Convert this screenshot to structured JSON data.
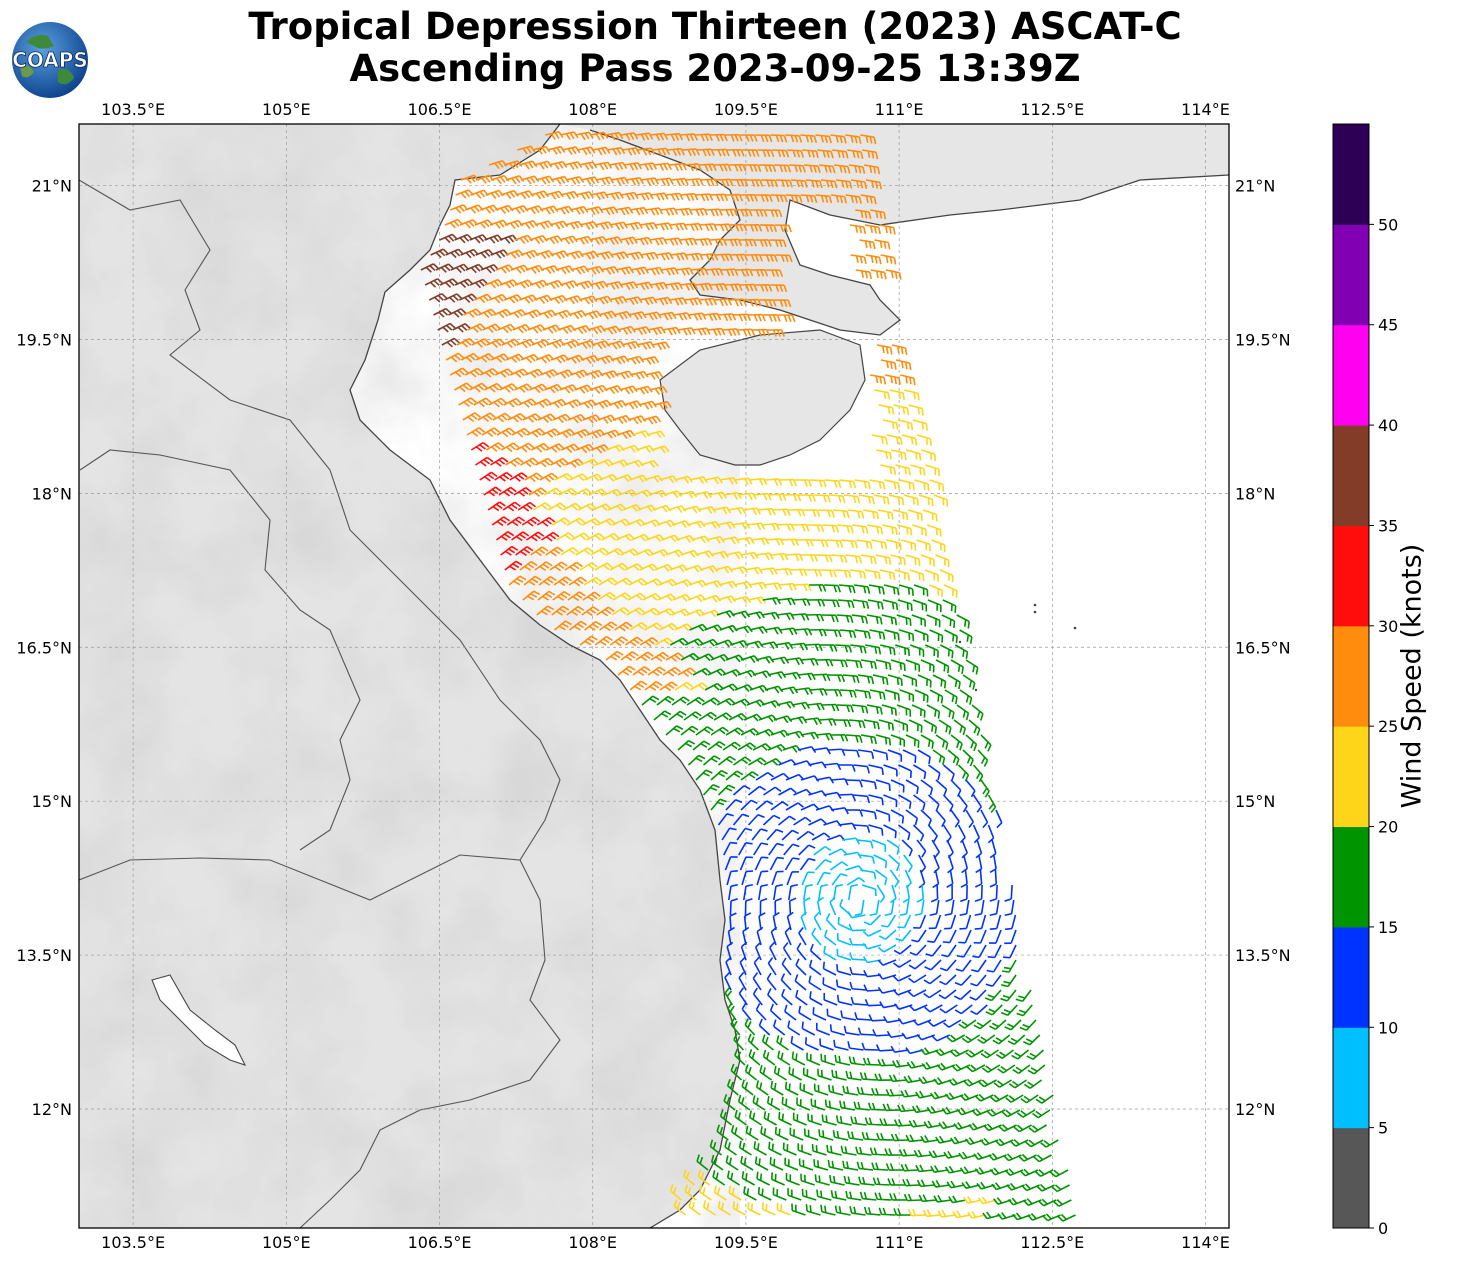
{
  "title": {
    "line1": "Tropical Depression Thirteen (2023) ASCAT-C",
    "line2": "Ascending Pass 2023-09-25 13:39Z"
  },
  "logo": {
    "text": "COAPS",
    "icon": "globe-logo-icon"
  },
  "map": {
    "lon_range": [
      102.97,
      114.23
    ],
    "lat_range": [
      10.84,
      21.6
    ],
    "lon_ticks": [
      {
        "value": 103.5,
        "label": "103.5°E"
      },
      {
        "value": 105.0,
        "label": "105°E"
      },
      {
        "value": 106.5,
        "label": "106.5°E"
      },
      {
        "value": 108.0,
        "label": "108°E"
      },
      {
        "value": 109.5,
        "label": "109.5°E"
      },
      {
        "value": 111.0,
        "label": "111°E"
      },
      {
        "value": 112.5,
        "label": "112.5°E"
      },
      {
        "value": 114.0,
        "label": "114°E"
      }
    ],
    "lat_ticks": [
      {
        "value": 21.0,
        "label": "21°N"
      },
      {
        "value": 19.5,
        "label": "19.5°N"
      },
      {
        "value": 18.0,
        "label": "18°N"
      },
      {
        "value": 16.5,
        "label": "16.5°N"
      },
      {
        "value": 15.0,
        "label": "15°N"
      },
      {
        "value": 13.5,
        "label": "13.5°N"
      },
      {
        "value": 12.0,
        "label": "12°N"
      }
    ],
    "grid": true,
    "grid_style": "dashed",
    "land_color": "#d8d8d8",
    "sea_color": "#ffffff",
    "coast_color": "#444444"
  },
  "colorbar": {
    "label": "Wind Speed (knots)",
    "bins": [
      {
        "from": 0,
        "to": 5,
        "color": "#575757"
      },
      {
        "from": 5,
        "to": 10,
        "color": "#00bfff"
      },
      {
        "from": 10,
        "to": 15,
        "color": "#0033ff"
      },
      {
        "from": 15,
        "to": 20,
        "color": "#009400"
      },
      {
        "from": 20,
        "to": 25,
        "color": "#ffd51a"
      },
      {
        "from": 25,
        "to": 30,
        "color": "#ff8c0d"
      },
      {
        "from": 30,
        "to": 35,
        "color": "#ff0d0d"
      },
      {
        "from": 35,
        "to": 40,
        "color": "#823c28"
      },
      {
        "from": 40,
        "to": 45,
        "color": "#ff00f0"
      },
      {
        "from": 45,
        "to": 50,
        "color": "#8200b4"
      },
      {
        "from": 50,
        "to": 55,
        "color": "#2d0055"
      }
    ],
    "tick_labels": [
      "0",
      "5",
      "10",
      "15",
      "20",
      "25",
      "30",
      "35",
      "40",
      "45",
      "50"
    ]
  }
}
